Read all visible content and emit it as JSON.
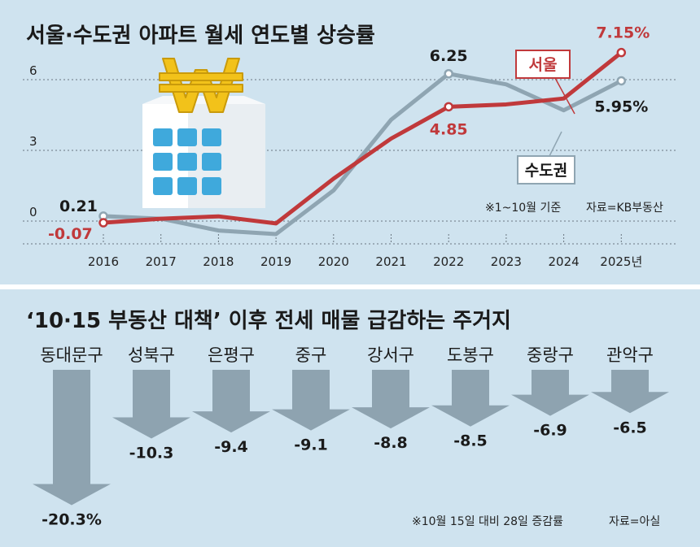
{
  "colors": {
    "seoul": "#c0393b",
    "metro": "#8fa5b2",
    "arrow": "#8ea3b0",
    "bg": "#cfe3ef"
  },
  "icon": "won-coin-building-icon",
  "chart_data": [
    {
      "type": "line",
      "title": "서울·수도권 아파트 월세 연도별 상승률",
      "x": [
        "2016",
        "2017",
        "2018",
        "2019",
        "2020",
        "2021",
        "2022",
        "2023",
        "2024",
        "2025년"
      ],
      "y_ticks": [
        "0",
        "3",
        "6"
      ],
      "ylim": [
        -1,
        7.5
      ],
      "grid": "horizontal-dotted",
      "series": [
        {
          "name": "서울",
          "color": "#c0393b",
          "values": [
            -0.07,
            0.1,
            0.2,
            -0.1,
            1.8,
            3.5,
            4.85,
            4.95,
            5.2,
            7.15
          ]
        },
        {
          "name": "수도권",
          "color": "#8fa5b2",
          "values": [
            0.21,
            0.1,
            -0.4,
            -0.55,
            1.3,
            4.3,
            6.25,
            5.8,
            4.7,
            5.95
          ]
        }
      ],
      "data_labels": [
        {
          "series": 1,
          "index": 0,
          "text": "0.21"
        },
        {
          "series": 0,
          "index": 0,
          "text": "-0.07"
        },
        {
          "series": 1,
          "index": 6,
          "text": "6.25"
        },
        {
          "series": 0,
          "index": 6,
          "text": "4.85"
        },
        {
          "series": 0,
          "index": 9,
          "text": "7.15%"
        },
        {
          "series": 1,
          "index": 9,
          "text": "5.95%"
        }
      ],
      "note": "※1~10월 기준",
      "source": "자료=KB부동산"
    },
    {
      "type": "bar",
      "orientation": "down-arrows",
      "title": "‘10·15 부동산 대책’ 이후 전세 매물 급감하는 주거지",
      "categories": [
        "동대문구",
        "성북구",
        "은평구",
        "중구",
        "강서구",
        "도봉구",
        "중랑구",
        "관악구"
      ],
      "values": [
        -20.3,
        -10.3,
        -9.4,
        -9.1,
        -8.8,
        -8.5,
        -6.9,
        -6.5
      ],
      "value_labels": [
        "-20.3%",
        "-10.3",
        "-9.4",
        "-9.1",
        "-8.8",
        "-8.5",
        "-6.9",
        "-6.5"
      ],
      "note": "※10월 15일 대비 28일 증감률",
      "source": "자료=아실"
    }
  ]
}
